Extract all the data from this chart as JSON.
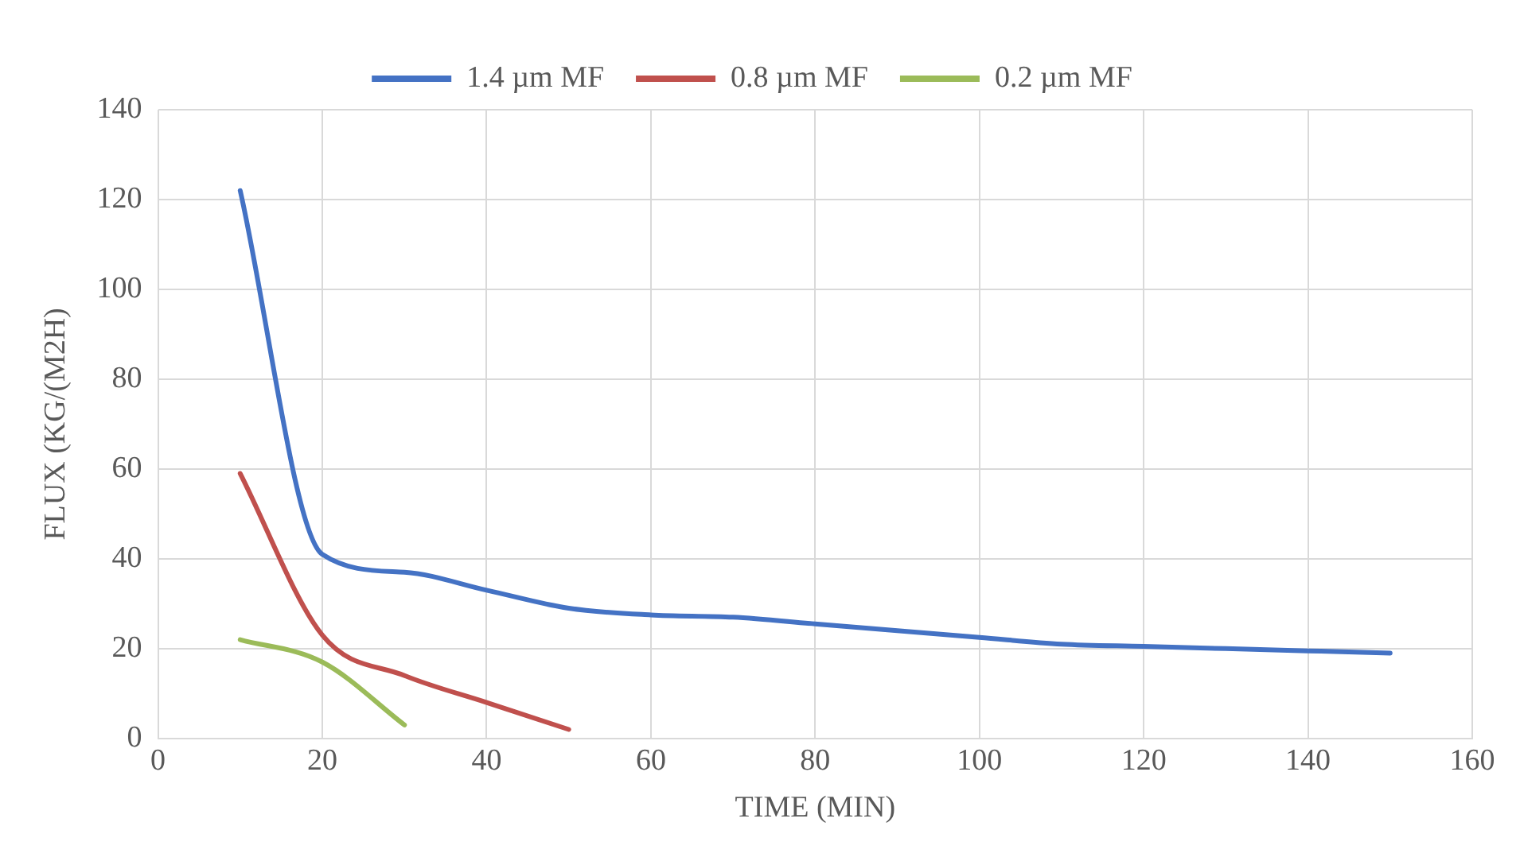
{
  "chart_data": {
    "type": "line",
    "xlabel": "TIME (MIN)",
    "ylabel": "FLUX (KG/(M2H)",
    "xlim": [
      0,
      160
    ],
    "xticks": [
      0,
      20,
      40,
      60,
      80,
      100,
      120,
      140,
      160
    ],
    "ylim": [
      0,
      140
    ],
    "yticks": [
      0,
      20,
      40,
      60,
      80,
      100,
      120,
      140
    ],
    "grid": true,
    "legend": "top",
    "marker": "none",
    "line_style": "solid",
    "series": [
      {
        "name": "1.4 µm MF",
        "color": "#4472c4",
        "x": [
          10,
          20,
          30,
          40,
          50,
          60,
          70,
          80,
          90,
          100,
          110,
          120,
          130,
          140,
          150
        ],
        "values": [
          122,
          41,
          37,
          33,
          29,
          27.5,
          27,
          25.5,
          24,
          22.5,
          21,
          20.5,
          20,
          19.5,
          19
        ]
      },
      {
        "name": "0.8 µm MF",
        "color": "#c0504d",
        "x": [
          10,
          20,
          30,
          40,
          50
        ],
        "values": [
          59,
          23,
          14,
          8,
          2
        ]
      },
      {
        "name": "0.2 µm MF",
        "color": "#9bbb59",
        "x": [
          10,
          20,
          30
        ],
        "values": [
          22,
          17,
          3
        ]
      }
    ]
  }
}
